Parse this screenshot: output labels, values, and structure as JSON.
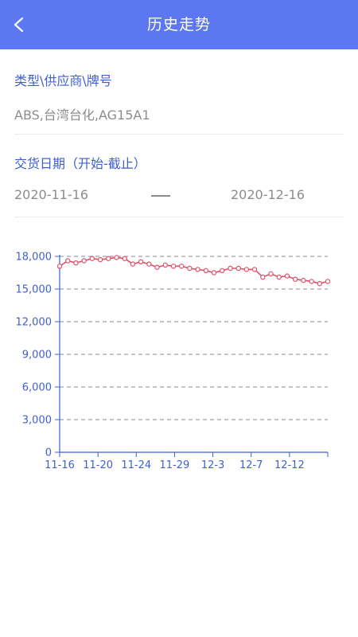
{
  "header": {
    "title": "历史走势",
    "back_icon": "chevron-left-icon"
  },
  "filters": {
    "type_label": "类型\\供应商\\牌号",
    "type_value": "ABS,台湾台化,AG15A1",
    "date_label": "交货日期（开始-截止）",
    "start_date": "2020-11-16",
    "end_date": "2020-12-16"
  },
  "colors": {
    "header": "#5b78f0",
    "accent": "#3f5fcf",
    "line": "#e0506a"
  },
  "chart_data": {
    "type": "line",
    "x_tick_labels": [
      "11-16",
      "11-20",
      "11-24",
      "11-29",
      "12-3",
      "12-7",
      "12-12"
    ],
    "y_tick_labels": [
      "0",
      "3,000",
      "6,000",
      "9,000",
      "12,000",
      "15,000",
      "18,000"
    ],
    "ylim": [
      0,
      18000
    ],
    "grid": true,
    "series": [
      {
        "values": [
          17100,
          17600,
          17400,
          17600,
          17800,
          17700,
          17800,
          17900,
          17800,
          17300,
          17500,
          17300,
          17000,
          17200,
          17100,
          17100,
          16900,
          16800,
          16700,
          16500,
          16700,
          16900,
          16900,
          16800,
          16800,
          16100,
          16400,
          16100,
          16200,
          15900,
          15800,
          15700,
          15500,
          15700
        ]
      }
    ]
  }
}
